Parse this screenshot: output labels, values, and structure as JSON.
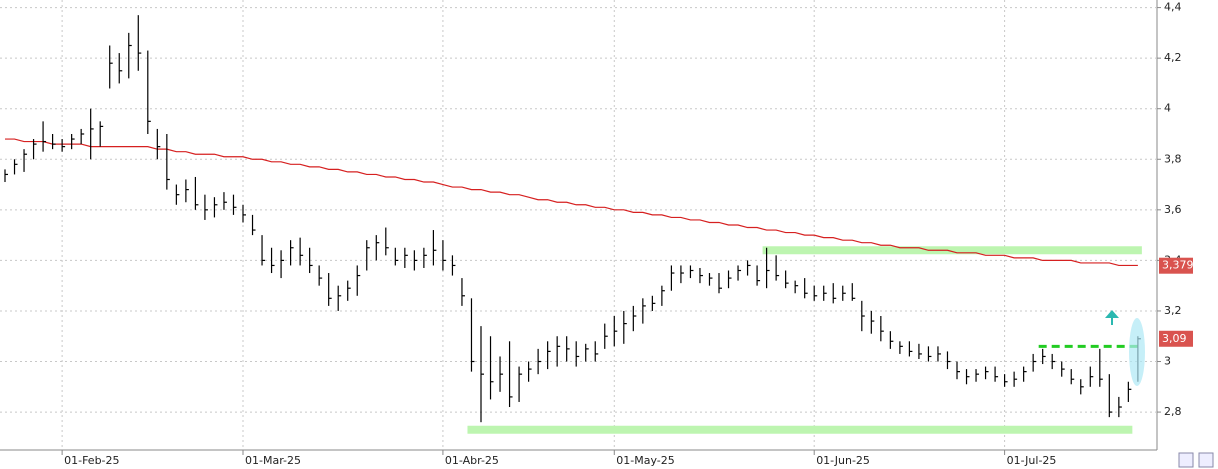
{
  "chart_data": {
    "type": "ohlc",
    "categories": [
      null,
      null,
      null,
      null,
      null,
      null,
      "01-Feb-25",
      null,
      null,
      null,
      null,
      null,
      null,
      null,
      null,
      null,
      null,
      null,
      null,
      null,
      null,
      null,
      null,
      null,
      null,
      "01-Mar-25",
      null,
      null,
      null,
      null,
      null,
      null,
      null,
      null,
      null,
      null,
      null,
      null,
      null,
      null,
      null,
      null,
      null,
      null,
      null,
      null,
      "01-Abr-25",
      null,
      null,
      null,
      null,
      null,
      null,
      null,
      null,
      null,
      null,
      null,
      null,
      null,
      null,
      null,
      null,
      null,
      "01-May-25",
      null,
      null,
      null,
      null,
      null,
      null,
      null,
      null,
      null,
      null,
      null,
      null,
      null,
      null,
      null,
      null,
      null,
      null,
      null,
      null,
      "01-Jun-25",
      null,
      null,
      null,
      null,
      null,
      null,
      null,
      null,
      null,
      null,
      null,
      null,
      null,
      null,
      null,
      null,
      null,
      null,
      null,
      "01-Jul-25",
      null,
      null,
      null,
      null,
      null,
      null,
      null,
      null,
      null,
      null,
      null,
      null,
      null,
      null
    ],
    "high": [
      3.76,
      3.8,
      3.84,
      3.88,
      3.95,
      3.9,
      3.88,
      3.9,
      3.92,
      4.0,
      3.95,
      4.25,
      4.22,
      4.3,
      4.37,
      4.23,
      3.92,
      3.9,
      3.7,
      3.72,
      3.73,
      3.66,
      3.65,
      3.67,
      3.66,
      3.62,
      3.58,
      3.5,
      3.45,
      3.44,
      3.48,
      3.49,
      3.45,
      3.38,
      3.35,
      3.3,
      3.32,
      3.38,
      3.48,
      3.5,
      3.53,
      3.45,
      3.45,
      3.44,
      3.45,
      3.52,
      3.48,
      3.42,
      3.33,
      3.25,
      3.14,
      3.1,
      3.02,
      3.08,
      2.98,
      3.0,
      3.05,
      3.08,
      3.1,
      3.1,
      3.08,
      3.07,
      3.08,
      3.15,
      3.18,
      3.2,
      3.22,
      3.25,
      3.26,
      3.3,
      3.38,
      3.38,
      3.38,
      3.37,
      3.35,
      3.35,
      3.36,
      3.38,
      3.4,
      3.38,
      3.45,
      3.42,
      3.36,
      3.32,
      3.33,
      3.3,
      3.3,
      3.31,
      3.3,
      3.31,
      3.24,
      3.2,
      3.18,
      3.12,
      3.08,
      3.08,
      3.07,
      3.06,
      3.06,
      3.04,
      3.0,
      2.97,
      2.97,
      2.98,
      2.98,
      2.95,
      2.96,
      2.98,
      3.03,
      3.05,
      3.03,
      3.0,
      2.97,
      2.93,
      2.98,
      3.05,
      2.95,
      2.86,
      2.92,
      3.1
    ],
    "low": [
      3.71,
      3.74,
      3.75,
      3.8,
      3.83,
      3.84,
      3.83,
      3.84,
      3.86,
      3.8,
      3.85,
      4.08,
      4.1,
      4.12,
      4.15,
      3.9,
      3.8,
      3.68,
      3.62,
      3.63,
      3.6,
      3.56,
      3.57,
      3.6,
      3.58,
      3.55,
      3.5,
      3.38,
      3.35,
      3.33,
      3.38,
      3.38,
      3.35,
      3.3,
      3.22,
      3.2,
      3.24,
      3.26,
      3.36,
      3.4,
      3.42,
      3.38,
      3.37,
      3.36,
      3.37,
      3.38,
      3.36,
      3.34,
      3.22,
      2.96,
      2.76,
      2.85,
      2.88,
      2.82,
      2.84,
      2.92,
      2.95,
      2.97,
      2.98,
      3.0,
      2.98,
      3.0,
      3.0,
      3.05,
      3.06,
      3.07,
      3.12,
      3.15,
      3.2,
      3.22,
      3.28,
      3.31,
      3.33,
      3.31,
      3.3,
      3.27,
      3.29,
      3.32,
      3.34,
      3.3,
      3.29,
      3.32,
      3.29,
      3.27,
      3.25,
      3.24,
      3.24,
      3.23,
      3.24,
      3.24,
      3.12,
      3.11,
      3.08,
      3.05,
      3.03,
      3.02,
      3.01,
      3.0,
      3.0,
      2.97,
      2.93,
      2.91,
      2.92,
      2.93,
      2.92,
      2.9,
      2.9,
      2.92,
      2.96,
      2.99,
      2.97,
      2.94,
      2.91,
      2.87,
      2.9,
      2.9,
      2.78,
      2.78,
      2.84,
      2.92
    ],
    "close": [
      3.74,
      3.78,
      3.82,
      3.86,
      3.87,
      3.86,
      3.85,
      3.88,
      3.9,
      3.92,
      3.93,
      4.18,
      4.15,
      4.25,
      4.22,
      3.95,
      3.85,
      3.72,
      3.66,
      3.68,
      3.62,
      3.6,
      3.62,
      3.63,
      3.61,
      3.58,
      3.52,
      3.4,
      3.38,
      3.4,
      3.45,
      3.42,
      3.38,
      3.33,
      3.25,
      3.26,
      3.29,
      3.34,
      3.45,
      3.47,
      3.45,
      3.4,
      3.42,
      3.4,
      3.42,
      3.44,
      3.4,
      3.38,
      3.26,
      3.0,
      2.95,
      2.92,
      2.95,
      2.86,
      2.95,
      2.97,
      3.0,
      3.04,
      3.06,
      3.05,
      3.02,
      3.05,
      3.03,
      3.1,
      3.12,
      3.15,
      3.18,
      3.22,
      3.23,
      3.28,
      3.35,
      3.35,
      3.36,
      3.34,
      3.33,
      3.29,
      3.33,
      3.36,
      3.38,
      3.32,
      3.36,
      3.34,
      3.31,
      3.3,
      3.27,
      3.26,
      3.27,
      3.25,
      3.27,
      3.25,
      3.18,
      3.16,
      3.12,
      3.08,
      3.06,
      3.04,
      3.03,
      3.02,
      3.03,
      3.0,
      2.96,
      2.94,
      2.95,
      2.96,
      2.94,
      2.92,
      2.93,
      2.96,
      3.0,
      3.02,
      3.0,
      2.97,
      2.93,
      2.9,
      2.94,
      2.93,
      2.8,
      2.82,
      2.89,
      3.09
    ],
    "bar_color": "#000000",
    "moving_average": {
      "color": "#d62020",
      "values": [
        3.88,
        3.88,
        3.87,
        3.87,
        3.87,
        3.86,
        3.86,
        3.86,
        3.86,
        3.85,
        3.85,
        3.85,
        3.85,
        3.85,
        3.85,
        3.85,
        3.84,
        3.84,
        3.83,
        3.83,
        3.82,
        3.82,
        3.82,
        3.81,
        3.81,
        3.81,
        3.8,
        3.8,
        3.79,
        3.79,
        3.78,
        3.78,
        3.77,
        3.77,
        3.76,
        3.76,
        3.75,
        3.75,
        3.74,
        3.74,
        3.73,
        3.73,
        3.72,
        3.72,
        3.71,
        3.71,
        3.7,
        3.69,
        3.69,
        3.68,
        3.68,
        3.67,
        3.67,
        3.66,
        3.66,
        3.65,
        3.64,
        3.64,
        3.63,
        3.63,
        3.62,
        3.62,
        3.61,
        3.61,
        3.6,
        3.6,
        3.59,
        3.59,
        3.58,
        3.58,
        3.57,
        3.57,
        3.56,
        3.56,
        3.55,
        3.55,
        3.54,
        3.54,
        3.53,
        3.53,
        3.52,
        3.52,
        3.51,
        3.51,
        3.5,
        3.5,
        3.49,
        3.49,
        3.48,
        3.48,
        3.47,
        3.47,
        3.46,
        3.46,
        3.45,
        3.45,
        3.45,
        3.44,
        3.44,
        3.44,
        3.43,
        3.43,
        3.43,
        3.42,
        3.42,
        3.42,
        3.41,
        3.41,
        3.41,
        3.4,
        3.4,
        3.4,
        3.4,
        3.39,
        3.39,
        3.39,
        3.39,
        3.38,
        3.38,
        3.38
      ]
    },
    "levels": [
      {
        "value": 2.73,
        "from": 49,
        "to": 118,
        "color": "#bdf5b0",
        "style": "solid"
      },
      {
        "value": 3.44,
        "from": 80,
        "to": 119,
        "color": "#bdf5b0",
        "style": "solid"
      },
      {
        "value": 3.06,
        "from": 109,
        "to": 119,
        "color": "#22cc22",
        "style": "dashed"
      }
    ],
    "price_labels": [
      {
        "value": 3.379,
        "label": "3,379"
      },
      {
        "value": 3.09,
        "label": "3,09"
      }
    ],
    "price_label_color": "#d9534f",
    "ylim": [
      2.65,
      4.43
    ],
    "yticks": [
      {
        "value": 2.8,
        "label": "2,8"
      },
      3,
      {
        "value": 3.2,
        "label": "3,2"
      },
      {
        "value": 3.4,
        "label": "3,4"
      },
      {
        "value": 3.6,
        "label": "3,6"
      },
      {
        "value": 3.8,
        "label": "3,8"
      },
      4,
      {
        "value": 4.2,
        "label": "4,2"
      },
      {
        "value": 4.4,
        "label": "4,4"
      }
    ],
    "grid": true
  }
}
